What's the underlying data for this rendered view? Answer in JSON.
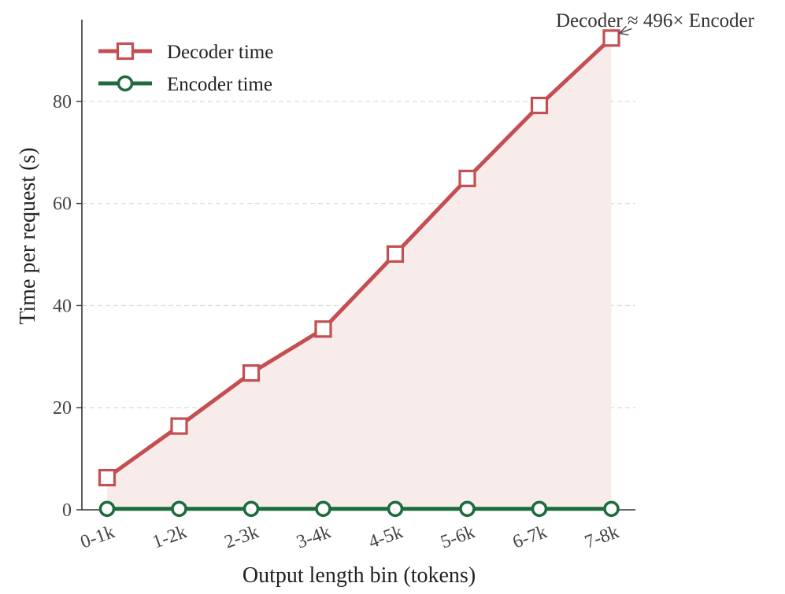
{
  "chart_data": {
    "type": "line",
    "categories": [
      "0-1k",
      "1-2k",
      "2-3k",
      "3-4k",
      "4-5k",
      "5-6k",
      "6-7k",
      "7-8k"
    ],
    "series": [
      {
        "name": "Decoder time",
        "values": [
          6.3,
          16.4,
          26.8,
          35.4,
          50.1,
          64.9,
          79.2,
          92.4
        ],
        "color": "#c44e52",
        "marker": "square",
        "fill_under": true,
        "fill_color": "#f8eceb"
      },
      {
        "name": "Encoder time",
        "values": [
          0.19,
          0.19,
          0.19,
          0.19,
          0.19,
          0.19,
          0.19,
          0.19
        ],
        "color": "#1e6b3c",
        "marker": "circle",
        "fill_under": false
      }
    ],
    "xlabel": "Output length bin (tokens)",
    "ylabel": "Time per request (s)",
    "ylim": [
      0,
      96
    ],
    "yticks": [
      0,
      20,
      40,
      60,
      80
    ],
    "grid": "horizontal dashed",
    "legend_position": "top-left",
    "annotation": {
      "text": "Decoder ≈ 496× Encoder",
      "target_category": "7-8k",
      "target_series": "Decoder time"
    }
  }
}
